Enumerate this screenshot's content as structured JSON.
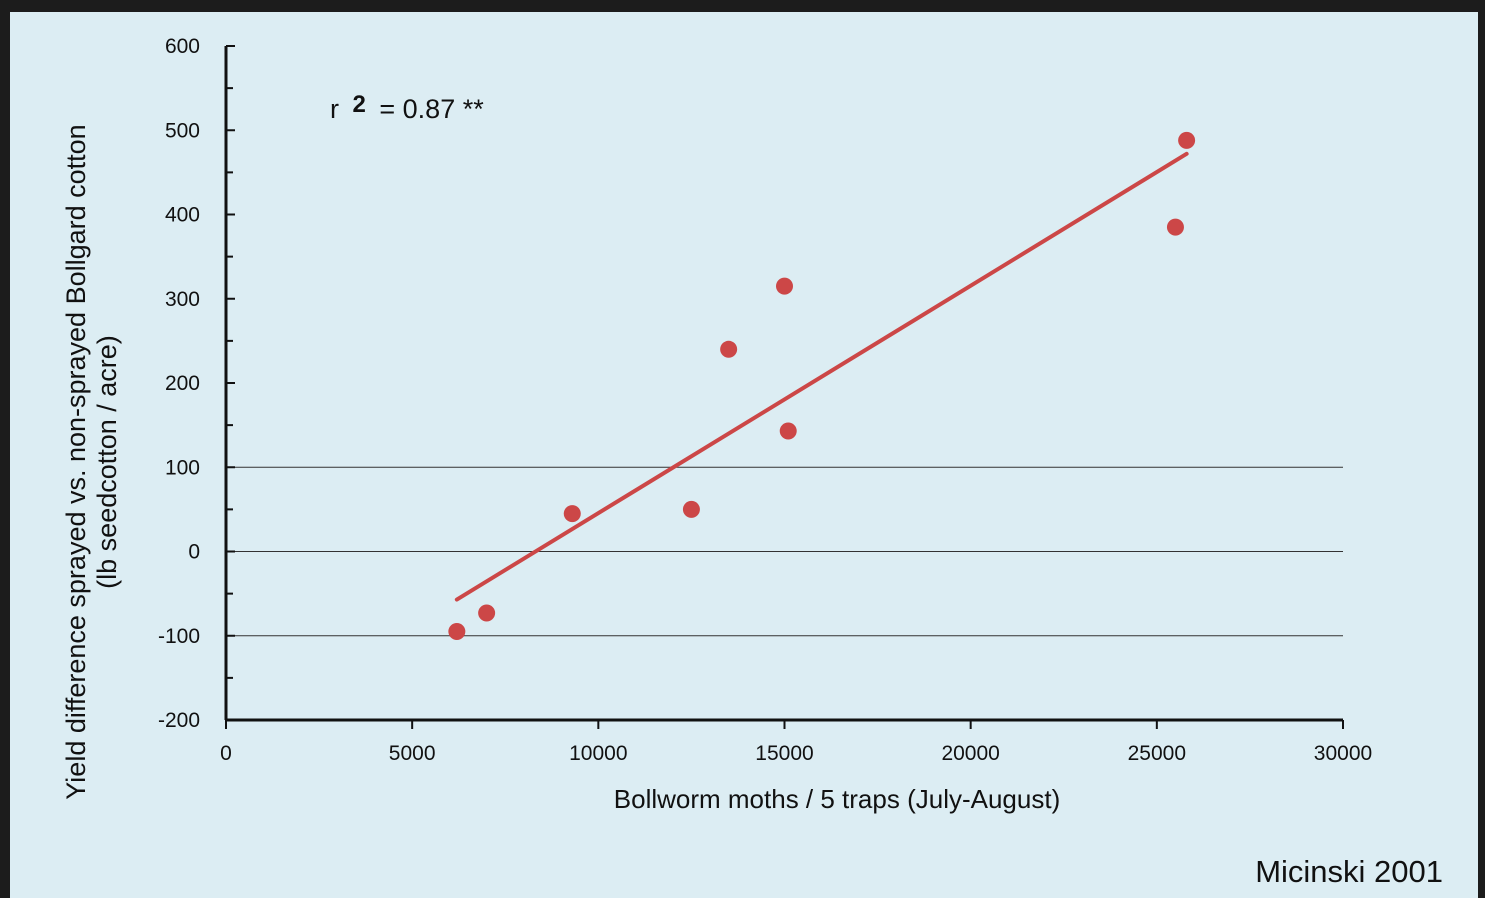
{
  "chart_data": {
    "type": "scatter",
    "xlabel": "Bollworm moths / 5 traps (July-August)",
    "ylabel_line1": "Yield difference sprayed vs. non-sprayed Bollgard cotton",
    "ylabel_line2": "(lb seedcotton / acre)",
    "xlim": [
      0,
      30000
    ],
    "ylim": [
      -200,
      600
    ],
    "x_ticks": [
      0,
      5000,
      10000,
      15000,
      20000,
      25000,
      30000
    ],
    "y_ticks": [
      600,
      500,
      400,
      300,
      200,
      100,
      0,
      -100,
      -200
    ],
    "x_tick_labels": [
      "0",
      "5000",
      "10000",
      "15000",
      "20000",
      "25000",
      "30000"
    ],
    "y_tick_labels": [
      "600",
      "500",
      "400",
      "300",
      "200",
      "100",
      "0",
      "-100",
      "-200"
    ],
    "reference_lines": [
      100,
      0,
      -100
    ],
    "points": [
      {
        "x": 6200,
        "y": -95
      },
      {
        "x": 7000,
        "y": -73
      },
      {
        "x": 9300,
        "y": 45
      },
      {
        "x": 12500,
        "y": 50
      },
      {
        "x": 13500,
        "y": 240
      },
      {
        "x": 15000,
        "y": 315
      },
      {
        "x": 15100,
        "y": 143
      },
      {
        "x": 25500,
        "y": 385
      },
      {
        "x": 25800,
        "y": 488
      }
    ],
    "trendline": {
      "x1": 6200,
      "y1": -57,
      "x2": 25800,
      "y2": 472
    },
    "annotation": {
      "prefix": "r",
      "superscript": "2",
      "text": "= 0.87 **"
    },
    "colors": {
      "points": "#cc4747",
      "trendline": "#cc4747",
      "axes": "#111111",
      "background": "#dcedf3"
    },
    "grid": false
  },
  "source": "Micinski  2001"
}
